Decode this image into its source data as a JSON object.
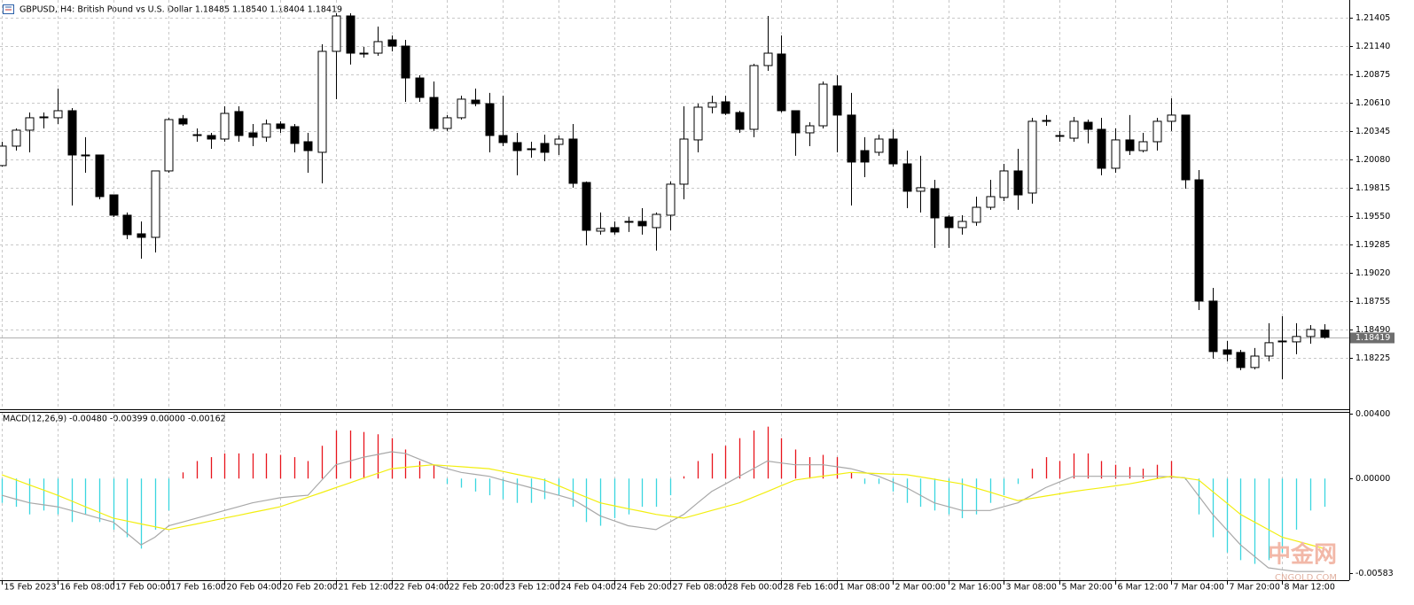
{
  "chart_data": [
    {
      "type": "candlestick",
      "title": "GBPUSD, H4:  British Pound vs U.S. Dollar  1.18485 1.18540 1.18404 1.18419",
      "categories": [
        "15 Feb 2023",
        null,
        null,
        null,
        "16 Feb 08:00",
        null,
        null,
        null,
        "17 Feb 00:00",
        null,
        null,
        null,
        "17 Feb 16:00",
        null,
        null,
        null,
        "20 Feb 04:00",
        null,
        null,
        null,
        "20 Feb 20:00",
        null,
        null,
        null,
        "21 Feb 12:00",
        null,
        null,
        null,
        "22 Feb 04:00",
        null,
        null,
        null,
        "22 Feb 20:00",
        null,
        null,
        null,
        "23 Feb 12:00",
        null,
        null,
        null,
        "24 Feb 04:00",
        null,
        null,
        null,
        "24 Feb 20:00",
        null,
        null,
        null,
        "27 Feb 08:00",
        null,
        null,
        null,
        "28 Feb 00:00",
        null,
        null,
        null,
        "28 Feb 16:00",
        null,
        null,
        null,
        "1 Mar 08:00",
        null,
        null,
        null,
        "2 Mar 00:00",
        null,
        null,
        null,
        "2 Mar 16:00",
        null,
        null,
        null,
        "3 Mar 08:00",
        null,
        null,
        null,
        "5 Mar 20:00",
        null,
        null,
        null,
        "6 Mar 12:00",
        null,
        null,
        null,
        "7 Mar 04:00",
        null,
        null,
        null,
        "7 Mar 20:00",
        null,
        null,
        null,
        "8 Mar 12:00",
        null,
        null,
        null
      ],
      "open": [
        1.20023,
        1.20205,
        1.20354,
        1.2047,
        1.2047,
        1.20536,
        1.20122,
        1.20122,
        1.19749,
        1.19559,
        1.19385,
        1.19352,
        1.19973,
        1.20461,
        1.20304,
        1.20304,
        1.20271,
        1.20528,
        1.20329,
        1.20288,
        1.20412,
        1.20387,
        1.20246,
        1.20147,
        1.21091,
        1.21422,
        1.21074,
        1.21074,
        1.21198,
        1.2114,
        1.20842,
        1.2066,
        1.2037,
        1.2047,
        1.20635,
        1.20602,
        1.20304,
        1.20238,
        1.2018,
        1.2023,
        1.20221,
        1.20271,
        1.19865,
        1.1941,
        1.19443,
        1.19493,
        1.19501,
        1.19443,
        1.19559,
        1.19849,
        1.20263,
        1.20569,
        1.20619,
        1.20519,
        1.20362,
        1.20958,
        1.21066,
        1.20536,
        1.20329,
        1.20395,
        1.20768,
        1.20495,
        1.20163,
        1.20147,
        1.20271,
        1.20039,
        1.19783,
        1.19807,
        1.19542,
        1.19443,
        1.19493,
        1.19633,
        1.19725,
        1.19973,
        1.19766,
        1.20445,
        1.20304,
        1.20279,
        1.20428,
        1.20362,
        1.19998,
        1.20263,
        1.20163,
        1.20246,
        1.20437,
        1.20495,
        1.1989,
        1.18756,
        1.183,
        1.18276,
        1.18135,
        1.18242,
        1.18375,
        1.18375,
        1.18425,
        1.18485
      ],
      "high": [
        1.20246,
        1.2037,
        1.20519,
        1.20519,
        1.20743,
        1.20561,
        1.20288,
        1.20122,
        1.19749,
        1.19584,
        1.19501,
        1.19973,
        1.2047,
        1.20495,
        1.2037,
        1.20329,
        1.20577,
        1.20577,
        1.20412,
        1.20453,
        1.20437,
        1.20412,
        1.20329,
        1.21157,
        1.21447,
        1.21447,
        1.21132,
        1.21323,
        1.2124,
        1.21198,
        1.20867,
        1.20809,
        1.20495,
        1.20677,
        1.20743,
        1.20702,
        1.20677,
        1.20329,
        1.20246,
        1.20312,
        1.20304,
        1.20412,
        1.19874,
        1.19584,
        1.19501,
        1.19542,
        1.19625,
        1.19584,
        1.19874,
        1.20577,
        1.20602,
        1.20677,
        1.20677,
        1.20536,
        1.20975,
        1.21422,
        1.2124,
        1.20536,
        1.20428,
        1.20809,
        1.20867,
        1.20702,
        1.20288,
        1.20312,
        1.20362,
        1.20163,
        1.20114,
        1.1989,
        1.19559,
        1.19559,
        1.19733,
        1.1989,
        1.20039,
        1.2018,
        1.2047,
        1.20495,
        1.20346,
        1.20478,
        1.20453,
        1.2047,
        1.2037,
        1.20495,
        1.20329,
        1.2047,
        1.20652,
        1.20495,
        1.19981,
        1.1888,
        1.18383,
        1.183,
        1.18317,
        1.18549,
        1.18615,
        1.18549,
        1.18532,
        1.1854
      ],
      "low": [
        1.20014,
        1.20163,
        1.20147,
        1.2037,
        1.20412,
        1.1965,
        1.19956,
        1.19708,
        1.19542,
        1.19335,
        1.19153,
        1.19211,
        1.19956,
        1.20395,
        1.20246,
        1.2018,
        1.20246,
        1.20246,
        1.20205,
        1.20246,
        1.20329,
        1.20147,
        1.19956,
        1.19857,
        1.20644,
        1.20967,
        1.21033,
        1.21049,
        1.21091,
        1.20619,
        1.20619,
        1.20346,
        1.20346,
        1.20453,
        1.20577,
        1.20147,
        1.20205,
        1.19932,
        1.20097,
        1.20064,
        1.20122,
        1.19816,
        1.19277,
        1.19377,
        1.19377,
        1.19402,
        1.19377,
        1.19228,
        1.19418,
        1.19708,
        1.20147,
        1.20511,
        1.20495,
        1.20329,
        1.20288,
        1.20909,
        1.20519,
        1.20114,
        1.20205,
        1.2037,
        1.20147,
        1.1965,
        1.19915,
        1.20114,
        1.20014,
        1.19625,
        1.19584,
        1.19253,
        1.19253,
        1.19377,
        1.1946,
        1.19609,
        1.19691,
        1.19609,
        1.19667,
        1.20395,
        1.20246,
        1.20246,
        1.2023,
        1.19932,
        1.19956,
        1.20122,
        1.20147,
        1.20163,
        1.20346,
        1.19807,
        1.18673,
        1.18218,
        1.18193,
        1.1811,
        1.18118,
        1.18193,
        1.18027,
        1.18259,
        1.18358,
        1.18404
      ],
      "close": [
        1.20205,
        1.20354,
        1.2047,
        1.20478,
        1.20536,
        1.20122,
        1.20114,
        1.19733,
        1.19559,
        1.19377,
        1.19352,
        1.19973,
        1.20453,
        1.20412,
        1.20312,
        1.20271,
        1.20511,
        1.20304,
        1.20288,
        1.20412,
        1.2037,
        1.2023,
        1.20163,
        1.21091,
        1.21422,
        1.21074,
        1.21066,
        1.21182,
        1.2114,
        1.20842,
        1.2066,
        1.2037,
        1.2047,
        1.20644,
        1.20602,
        1.20304,
        1.20238,
        1.20163,
        1.2018,
        1.20147,
        1.20271,
        1.19857,
        1.19418,
        1.19435,
        1.19402,
        1.19501,
        1.1946,
        1.19567,
        1.19849,
        1.20271,
        1.20569,
        1.20611,
        1.20511,
        1.20362,
        1.20958,
        1.21074,
        1.20536,
        1.20329,
        1.20395,
        1.20784,
        1.20495,
        1.20056,
        1.20056,
        1.20271,
        1.20039,
        1.19783,
        1.19816,
        1.19534,
        1.19443,
        1.19501,
        1.19633,
        1.19733,
        1.19973,
        1.19749,
        1.20437,
        1.20445,
        1.20304,
        1.20437,
        1.20362,
        1.19998,
        1.20263,
        1.20163,
        1.20246,
        1.20437,
        1.20495,
        1.1989,
        1.18756,
        1.18284,
        1.18259,
        1.18135,
        1.18242,
        1.18367,
        1.18383,
        1.18425,
        1.18491,
        1.18419
      ],
      "up_color": "#ffffff",
      "down_color": "#000000",
      "wick_color": "#000000",
      "ylim": [
        1.17745,
        1.21571
      ],
      "yticks": [
        1.21405,
        {
          "value": 1.2114,
          "label": "1.21140"
        },
        1.20875,
        {
          "value": 1.2061,
          "label": "1.20610"
        },
        1.20345,
        {
          "value": 1.2008,
          "label": "1.20080"
        },
        1.19815,
        {
          "value": 1.1955,
          "label": "1.19550"
        },
        1.19285,
        {
          "value": 1.1902,
          "label": "1.19020"
        },
        1.18755,
        {
          "value": 1.1849,
          "label": "1.18490"
        },
        1.18225
      ],
      "grid": true
    },
    {
      "type": "macd",
      "title": "MACD(12,26,9) -0.00480 -0.00399 0.00000 -0.00162",
      "series": [
        {
          "style": "histogram",
          "positive_color": "#e8141c",
          "negative_color": "#3ad6e0",
          "values": [
            -0.0015,
            -0.00174,
            -0.00221,
            -0.00197,
            -0.00221,
            -0.00268,
            -0.00221,
            -0.00268,
            -0.00315,
            -0.00362,
            -0.00432,
            -0.00315,
            -0.00197,
            0.00038,
            0.00108,
            0.00132,
            0.00155,
            0.00155,
            0.00155,
            0.00155,
            0.00146,
            0.00132,
            0.00108,
            0.00202,
            0.00296,
            0.00296,
            0.00287,
            0.00273,
            0.00249,
            0.00179,
            0.00108,
            0.00085,
            -0.00033,
            -0.00056,
            -0.0008,
            -0.00103,
            -0.00127,
            -0.0015,
            -0.0015,
            -0.00127,
            -0.00103,
            -0.00174,
            -0.00268,
            -0.00291,
            -0.00244,
            -0.00221,
            -0.00174,
            -0.00174,
            -0.00103,
            0.00014,
            0.00108,
            0.00155,
            0.00202,
            0.00249,
            0.00296,
            0.0032,
            0.00249,
            0.00179,
            0.00132,
            0.00146,
            0.00132,
            0.00038,
            -0.00033,
            -0.00033,
            -0.0008,
            -0.0015,
            -0.00174,
            -0.00197,
            -0.00221,
            -0.00244,
            -0.00221,
            -0.0015,
            -0.00103,
            -0.00033,
            0.00061,
            0.00132,
            0.00108,
            0.00155,
            0.00155,
            0.00108,
            0.00085,
            0.00071,
            0.00061,
            0.00085,
            0.00108,
            -9e-05,
            -0.00221,
            -0.00362,
            -0.00456,
            -0.00503,
            -0.00526,
            -0.00503,
            -0.00456,
            -0.00315,
            -0.00197,
            -0.00174
          ]
        },
        {
          "style": "line",
          "color": "#a8a8a8",
          "values": [
            -0.00103,
            -0.00127,
            -0.0015,
            -0.00162,
            -0.00174,
            -0.00197,
            -0.00221,
            -0.00245,
            -0.00268,
            -0.00338,
            -0.00409,
            -0.00362,
            -0.00291,
            -0.00268,
            -0.00244,
            -0.00221,
            -0.00197,
            -0.00174,
            -0.0015,
            -0.00134,
            -0.00118,
            -0.0011,
            -0.00103,
            -9e-05,
            0.00085,
            0.00108,
            0.00132,
            0.00148,
            0.00165,
            0.00155,
            0.0012,
            0.00085,
            0.00061,
            0.00038,
            0.00026,
            0.00014,
            -0.0001,
            -0.00033,
            -0.00056,
            -0.0008,
            -0.00103,
            -0.00127,
            -0.00178,
            -0.0023,
            -0.0026,
            -0.00291,
            -0.00303,
            -0.00315,
            -0.00268,
            -0.00221,
            -0.0015,
            -0.0008,
            -0.00033,
            0.00014,
            0.00061,
            0.00108,
            0.00096,
            0.00085,
            0.00085,
            0.00085,
            0.00073,
            0.00061,
            0.00038,
            0.00014,
            -0.00021,
            -0.00056,
            -0.00103,
            -0.0015,
            -0.00173,
            -0.00197,
            -0.00197,
            -0.00197,
            -0.00173,
            -0.0015,
            -0.00103,
            -0.00056,
            -0.00021,
            0.00014,
            0.00014,
            0.00014,
            0.00014,
            0.00014,
            0.00014,
            0.00014,
            0.0001,
            5e-05,
            -0.00108,
            -0.00221,
            -0.00315,
            -0.00409,
            -0.0048,
            -0.0055,
            -0.00562,
            -0.00573,
            -0.00573,
            -0.00573
          ]
        },
        {
          "style": "line",
          "color": "#f2ee10",
          "values": [
            0.00024,
            -8e-05,
            -0.0004,
            -0.00071,
            -0.00103,
            -0.00138,
            -0.00174,
            -0.00209,
            -0.00244,
            -0.00262,
            -0.0028,
            -0.00297,
            -0.00315,
            -0.00297,
            -0.0028,
            -0.00262,
            -0.00244,
            -0.00227,
            -0.00209,
            -0.00192,
            -0.00174,
            -0.00145,
            -0.00115,
            -0.00086,
            -0.00056,
            -0.00027,
            3e-05,
            0.00032,
            0.00061,
            0.00069,
            0.00077,
            0.00085,
            0.00079,
            0.00073,
            0.00067,
            0.00061,
            0.00044,
            0.00026,
            9e-05,
            -9e-05,
            -0.00044,
            -0.0008,
            -0.00115,
            -0.0015,
            -0.00168,
            -0.00186,
            -0.00203,
            -0.00221,
            -0.00233,
            -0.00244,
            -0.00221,
            -0.00197,
            -0.00174,
            -0.0015,
            -0.00115,
            -0.0008,
            -0.00044,
            -9e-05,
            3e-05,
            0.00015,
            0.00026,
            0.00038,
            0.00034,
            0.00031,
            0.00027,
            0.00024,
            0.0001,
            -4e-05,
            -0.00019,
            -0.00033,
            -0.00059,
            -0.00084,
            -0.0011,
            -0.00136,
            -0.00122,
            -0.00108,
            -0.00094,
            -0.0008,
            -0.00068,
            -0.00057,
            -0.00045,
            -0.00033,
            -0.00017,
            -1e-05,
            0.00014,
            3e-05,
            -9e-05,
            -0.0008,
            -0.0015,
            -0.00221,
            -0.00268,
            -0.00315,
            -0.00362,
            -0.00385,
            -0.00408,
            -0.00432
          ]
        }
      ],
      "ylim": [
        -0.00583,
        0.004
      ],
      "yticks": [
        {
          "value": 0.004,
          "label": "0.00400"
        },
        {
          "value": 0,
          "label": "0.00000"
        },
        -0.00583
      ],
      "grid": false
    }
  ],
  "watermark": {
    "logo": "中金网",
    "site": "CNGOLD.COM"
  }
}
